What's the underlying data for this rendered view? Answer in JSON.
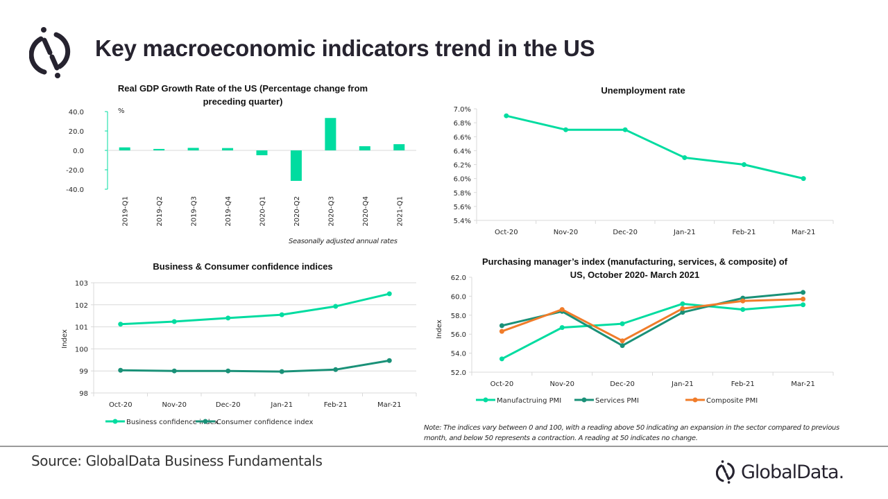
{
  "header": {
    "title": "Key macroeconomic indicators trend in the US",
    "logo_icon": "globaldata-logo-icon"
  },
  "colors": {
    "mint": "#00DCA0",
    "teal": "#1A9178",
    "orange": "#F07C2A",
    "axis": "#d9d9d9",
    "brand": "#26232f"
  },
  "footer": {
    "source": "Source: GlobalData Business Fundamentals",
    "brand": "GlobalData."
  },
  "chart_data": [
    {
      "id": "gdp",
      "type": "bar",
      "title_lines": [
        "Real GDP Growth Rate of the US (Percentage change from",
        "preceding quarter)"
      ],
      "unit_label": "%",
      "categories": [
        "2019-Q1",
        "2019-Q2",
        "2019-Q3",
        "2019-Q4",
        "2020-Q1",
        "2020-Q2",
        "2020-Q3",
        "2020-Q4",
        "2021-Q1"
      ],
      "values": [
        3.1,
        1.5,
        2.6,
        2.4,
        -5.0,
        -31.4,
        33.4,
        4.3,
        6.4
      ],
      "ylim": [
        -40,
        40
      ],
      "yticks": [
        "40.0",
        "20.0",
        "0.0",
        "-20.0",
        "-40.0"
      ],
      "ytick_values": [
        40,
        20,
        0,
        -20,
        -40
      ],
      "note": "Seasonally adjusted annual rates",
      "grid": false
    },
    {
      "id": "unemployment",
      "type": "line",
      "title_lines": [
        "Unemployment rate"
      ],
      "categories": [
        "Oct-20",
        "Nov-20",
        "Dec-20",
        "Jan-21",
        "Feb-21",
        "Mar-21"
      ],
      "series": [
        {
          "name": "Unemployment rate",
          "values": [
            6.9,
            6.7,
            6.7,
            6.3,
            6.2,
            6.0
          ],
          "color": "#00DCA0"
        }
      ],
      "ylim": [
        5.4,
        7.0
      ],
      "yticks": [
        "7.0%",
        "6.8%",
        "6.6%",
        "6.4%",
        "6.2%",
        "6.0%",
        "5.8%",
        "5.6%",
        "5.4%"
      ],
      "ytick_values": [
        7.0,
        6.8,
        6.6,
        6.4,
        6.2,
        6.0,
        5.8,
        5.6,
        5.4
      ],
      "grid": false
    },
    {
      "id": "confidence",
      "type": "line",
      "title_lines": [
        "Business & Consumer confidence indices"
      ],
      "ylabel": "Index",
      "categories": [
        "Oct-20",
        "Nov-20",
        "Dec-20",
        "Jan-21",
        "Feb-21",
        "Mar-21"
      ],
      "series": [
        {
          "name": "Business confidence index",
          "values": [
            101.12,
            101.24,
            101.4,
            101.55,
            101.93,
            102.5
          ],
          "color": "#00DCA0"
        },
        {
          "name": "Consumer confidence index",
          "values": [
            99.03,
            99.0,
            99.0,
            98.97,
            99.06,
            99.47
          ],
          "color": "#1A9178"
        }
      ],
      "ylim": [
        98,
        103
      ],
      "yticks": [
        "103",
        "102",
        "101",
        "100",
        "99",
        "98"
      ],
      "ytick_values": [
        103,
        102,
        101,
        100,
        99,
        98
      ],
      "grid": true,
      "legend": "bottom"
    },
    {
      "id": "pmi",
      "type": "line",
      "title_lines": [
        "Purchasing manager’s index (manufacturing, services, & composite) of",
        "US, October 2020- March 2021"
      ],
      "ylabel": "Index",
      "categories": [
        "Oct-20",
        "Nov-20",
        "Dec-20",
        "Jan-21",
        "Feb-21",
        "Mar-21"
      ],
      "series": [
        {
          "name": "Manufactruing PMI",
          "values": [
            53.4,
            56.7,
            57.1,
            59.2,
            58.6,
            59.1
          ],
          "color": "#00DCA0"
        },
        {
          "name": "Services PMI",
          "values": [
            56.9,
            58.4,
            54.8,
            58.3,
            59.8,
            60.4
          ],
          "color": "#1A9178"
        },
        {
          "name": "Composite PMI",
          "values": [
            56.3,
            58.6,
            55.3,
            58.7,
            59.5,
            59.7
          ],
          "color": "#F07C2A"
        }
      ],
      "ylim": [
        52,
        62
      ],
      "yticks": [
        "62.0",
        "60.0",
        "58.0",
        "56.0",
        "54.0",
        "52.0"
      ],
      "ytick_values": [
        62,
        60,
        58,
        56,
        54,
        52
      ],
      "grid": false,
      "legend": "bottom",
      "note": "Note: The indices vary between 0 and 100, with a reading above 50 indicating an expansion in the sector compared to previous month, and below 50 represents a contraction. A reading at 50 indicates no change."
    }
  ]
}
